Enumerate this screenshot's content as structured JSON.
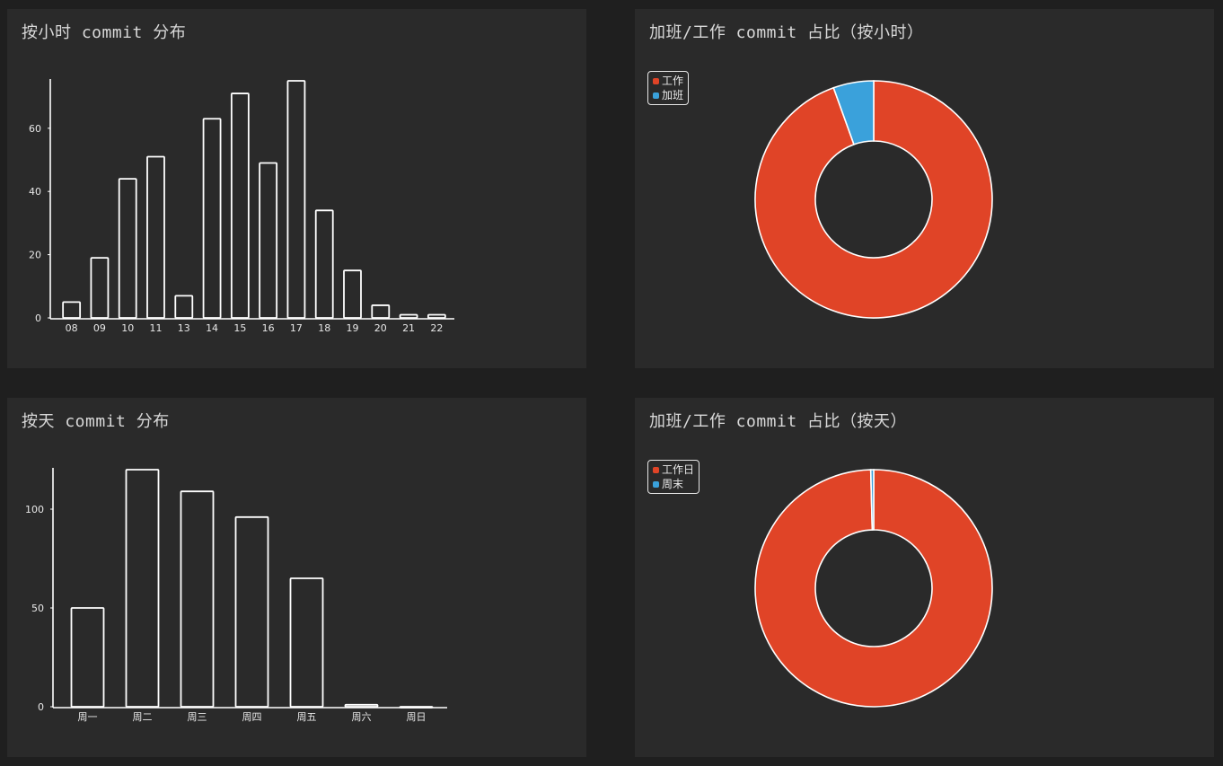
{
  "panels": {
    "hourly": {
      "title": "按小时 commit 分布"
    },
    "ratio_hourly": {
      "title": "加班/工作 commit 占比（按小时）"
    },
    "daily": {
      "title": "按天 commit 分布"
    },
    "ratio_daily": {
      "title": "加班/工作 commit 占比（按天）"
    }
  },
  "colors": {
    "work": "#e04427",
    "overtime": "#3aa1db",
    "stroke": "#ffffff",
    "panel_bg": "#2a2a2a"
  },
  "chart_data": [
    {
      "type": "bar",
      "title": "按小时 commit 分布",
      "categories": [
        "08",
        "09",
        "10",
        "11",
        "13",
        "14",
        "15",
        "16",
        "17",
        "18",
        "19",
        "20",
        "21",
        "22"
      ],
      "values": [
        5,
        19,
        44,
        51,
        7,
        63,
        71,
        49,
        75,
        34,
        15,
        4,
        1,
        1
      ],
      "ylim": [
        0,
        75
      ],
      "yticks": [
        0,
        20,
        40,
        60
      ]
    },
    {
      "type": "pie",
      "title": "加班/工作 commit 占比（按小时）",
      "legend_position": "top-left",
      "labels": [
        "工作",
        "加班"
      ],
      "values": [
        94.5,
        5.5
      ]
    },
    {
      "type": "bar",
      "title": "按天 commit 分布",
      "categories": [
        "周一",
        "周二",
        "周三",
        "周四",
        "周五",
        "周六",
        "周日"
      ],
      "values": [
        50,
        120,
        109,
        96,
        65,
        1,
        0
      ],
      "ylim": [
        0,
        120
      ],
      "yticks": [
        0,
        50,
        100
      ]
    },
    {
      "type": "pie",
      "title": "加班/工作 commit 占比（按天）",
      "legend_position": "top-left",
      "labels": [
        "工作日",
        "周末"
      ],
      "values": [
        99.6,
        0.4
      ]
    }
  ]
}
